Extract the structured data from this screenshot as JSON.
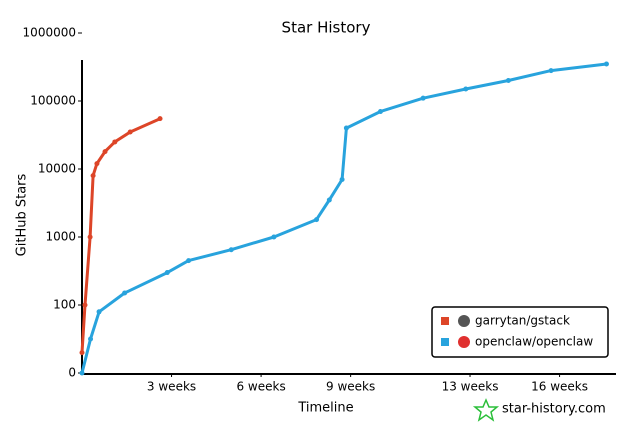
{
  "chart_data": {
    "type": "line",
    "title": "Star History",
    "x_label": "Timeline",
    "y_label": "GitHub Stars",
    "watermark": "star-history.com",
    "xlim": [
      0,
      125
    ],
    "xticks": [
      {
        "value": 21,
        "label": "3 weeks"
      },
      {
        "value": 42,
        "label": "6 weeks"
      },
      {
        "value": 63,
        "label": "9 weeks"
      },
      {
        "value": 91,
        "label": "13 weeks"
      },
      {
        "value": 112,
        "label": "16 weeks"
      }
    ],
    "ylim": [
      0,
      1000000
    ],
    "yscale": "symlog",
    "yticks": [
      0,
      100,
      1000,
      10000,
      100000,
      1000000
    ],
    "legend": "lower right",
    "series": [
      {
        "name": "garrytan/gstack",
        "color": "#dd4528",
        "x": [
          0,
          0.7,
          1.9,
          2.6,
          3.5,
          5.4,
          7.7,
          11.3,
          18.3
        ],
        "values": [
          30,
          100,
          1000,
          8000,
          12000,
          18000,
          25000,
          35000,
          55000
        ]
      },
      {
        "name": "openclaw/openclaw",
        "color": "#28a3dd",
        "x": [
          0,
          2,
          4,
          10,
          20,
          25,
          35,
          45,
          55,
          58,
          61,
          62,
          70,
          80,
          90,
          100,
          110,
          123
        ],
        "values": [
          0,
          50,
          90,
          150,
          300,
          450,
          650,
          1000,
          1800,
          3500,
          7000,
          40000,
          70000,
          110000,
          150000,
          200000,
          280000,
          350000
        ]
      }
    ]
  }
}
